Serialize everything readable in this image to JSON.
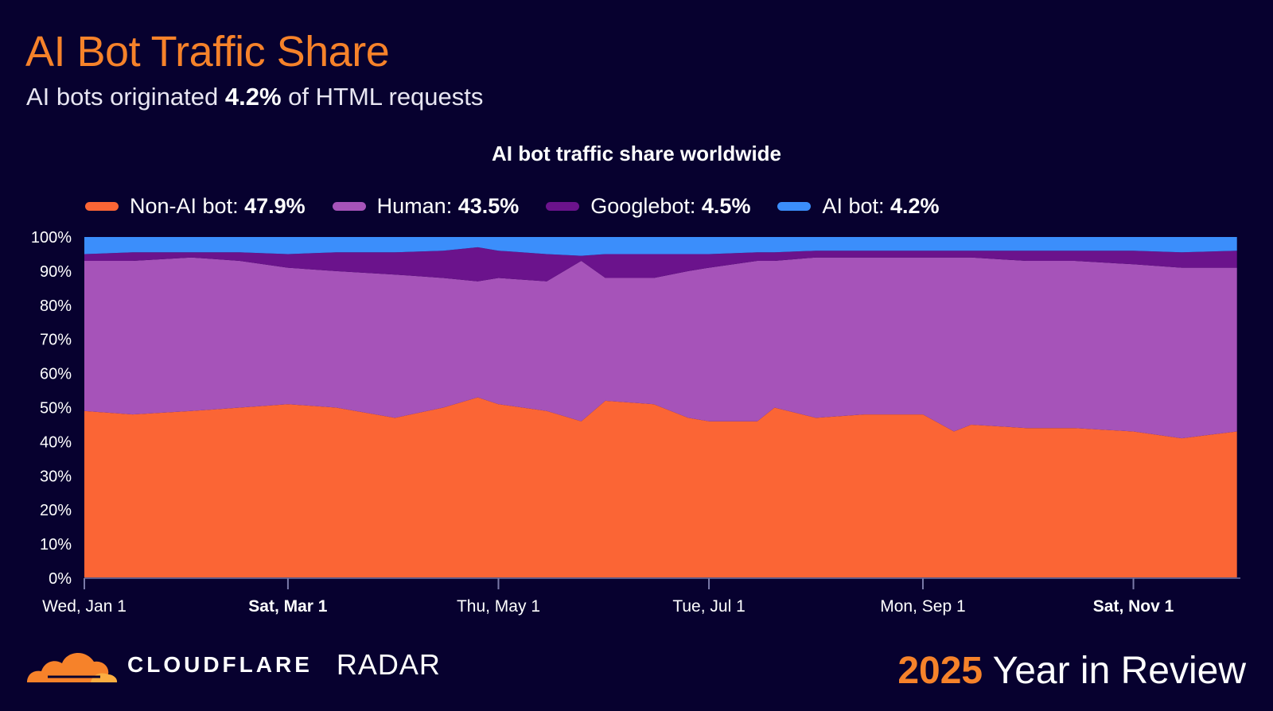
{
  "header": {
    "title": "AI Bot Traffic Share",
    "subtitle_prefix": "AI bots originated ",
    "subtitle_value": "4.2%",
    "subtitle_suffix": " of HTML requests"
  },
  "footer": {
    "brand": "CLOUDFLARE",
    "product": "RADAR",
    "year": "2025",
    "tagline": "Year in Review"
  },
  "chart_data": {
    "type": "area",
    "stacked": true,
    "title": "AI bot traffic share worldwide",
    "xlabel": "",
    "ylabel": "",
    "ylim": [
      0,
      100
    ],
    "yticks": [
      "0%",
      "10%",
      "20%",
      "30%",
      "40%",
      "50%",
      "60%",
      "70%",
      "80%",
      "90%",
      "100%"
    ],
    "xticks": [
      {
        "date": "2025-01-01",
        "label": "Wed, Jan 1",
        "bold": false
      },
      {
        "date": "2025-03-01",
        "label": "Sat, Mar 1",
        "bold": true
      },
      {
        "date": "2025-05-01",
        "label": "Thu, May 1",
        "bold": false
      },
      {
        "date": "2025-07-01",
        "label": "Tue, Jul 1",
        "bold": false
      },
      {
        "date": "2025-09-01",
        "label": "Mon, Sep 1",
        "bold": false
      },
      {
        "date": "2025-11-01",
        "label": "Sat, Nov 1",
        "bold": true
      }
    ],
    "xlim": [
      "2025-01-01",
      "2025-12-02"
    ],
    "grid": false,
    "legend_position": "top-left",
    "x": [
      "2025-01-01",
      "2025-01-15",
      "2025-02-01",
      "2025-02-15",
      "2025-03-01",
      "2025-03-15",
      "2025-04-01",
      "2025-04-15",
      "2025-04-25",
      "2025-05-01",
      "2025-05-15",
      "2025-05-25",
      "2025-06-01",
      "2025-06-15",
      "2025-06-25",
      "2025-07-01",
      "2025-07-15",
      "2025-07-20",
      "2025-08-01",
      "2025-08-15",
      "2025-09-01",
      "2025-09-10",
      "2025-09-15",
      "2025-10-01",
      "2025-10-15",
      "2025-11-01",
      "2025-11-15",
      "2025-12-01"
    ],
    "series": [
      {
        "name": "Non-AI bot",
        "total": "47.9%",
        "color": "#fb6535",
        "values": [
          49,
          48,
          49,
          50,
          51,
          50,
          47,
          50,
          53,
          51,
          49,
          46,
          52,
          51,
          47,
          46,
          46,
          50,
          47,
          48,
          48,
          43,
          45,
          44,
          44,
          43,
          41,
          43
        ]
      },
      {
        "name": "Human",
        "total": "43.5%",
        "color": "#a653b9",
        "values": [
          44,
          45,
          45,
          43,
          40,
          40,
          42,
          38,
          34,
          37,
          38,
          47,
          36,
          37,
          43,
          45,
          47,
          43,
          47,
          46,
          46,
          51,
          49,
          49,
          49,
          49,
          50,
          48
        ]
      },
      {
        "name": "Googlebot",
        "total": "4.5%",
        "color": "#6b138c",
        "values": [
          2,
          2.5,
          1.5,
          2.5,
          4,
          5.5,
          6.5,
          8,
          10,
          8,
          8,
          1.5,
          7,
          7,
          5,
          4,
          2.5,
          2.5,
          2,
          2,
          2,
          2,
          2,
          3,
          3,
          4,
          4.5,
          5
        ]
      },
      {
        "name": "AI bot",
        "total": "4.2%",
        "color": "#3b8efb",
        "values": [
          5,
          4.5,
          4.5,
          4.5,
          5,
          4.5,
          4.5,
          4,
          3,
          4,
          5,
          5.5,
          5,
          5,
          5,
          5,
          4.5,
          4.5,
          4,
          4,
          4,
          4,
          4,
          4,
          4,
          4,
          4.5,
          4
        ]
      }
    ]
  }
}
